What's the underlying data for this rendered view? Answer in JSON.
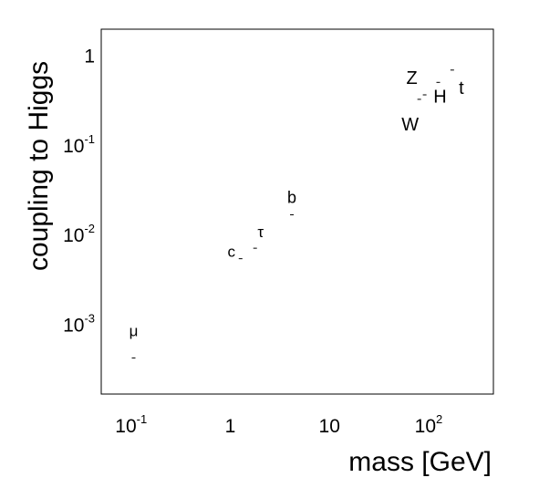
{
  "chart_data": {
    "type": "scatter",
    "xlabel": "mass [GeV]",
    "ylabel": "coupling to Higgs",
    "xscale": "log",
    "yscale": "log",
    "xlim": [
      0.05,
      450
    ],
    "ylim": [
      0.00017,
      2.0
    ],
    "grid": false,
    "xticks": [
      {
        "value": 0.1,
        "base": "10",
        "exp": "-1"
      },
      {
        "value": 1,
        "base": "1",
        "exp": ""
      },
      {
        "value": 10,
        "base": "10",
        "exp": ""
      },
      {
        "value": 100,
        "base": "10",
        "exp": "2"
      }
    ],
    "yticks": [
      {
        "value": 1,
        "base": "1",
        "exp": ""
      },
      {
        "value": 0.1,
        "base": "10",
        "exp": "-1"
      },
      {
        "value": 0.01,
        "base": "10",
        "exp": "-2"
      },
      {
        "value": 0.001,
        "base": "10",
        "exp": "-3"
      }
    ],
    "points": [
      {
        "label": "μ",
        "x": 0.106,
        "y": 0.00043,
        "dx": 0,
        "dy": -24,
        "size": 17
      },
      {
        "label": "c",
        "x": 1.27,
        "y": 0.0055,
        "dx": -10,
        "dy": -2,
        "size": 17
      },
      {
        "label": "τ",
        "x": 1.78,
        "y": 0.0072,
        "dx": 6,
        "dy": -12,
        "size": 17
      },
      {
        "label": "b",
        "x": 4.18,
        "y": 0.017,
        "dx": 0,
        "dy": -13,
        "size": 18
      },
      {
        "label": "W",
        "x": 80.4,
        "y": 0.33,
        "dx": -10,
        "dy": 34,
        "size": 20
      },
      {
        "label": "Z",
        "x": 91.2,
        "y": 0.37,
        "dx": -14,
        "dy": -12,
        "size": 20
      },
      {
        "label": "H",
        "x": 125,
        "y": 0.51,
        "dx": 2,
        "dy": 22,
        "size": 20
      },
      {
        "label": "t",
        "x": 173,
        "y": 0.7,
        "dx": 10,
        "dy": 26,
        "size": 20
      }
    ]
  }
}
